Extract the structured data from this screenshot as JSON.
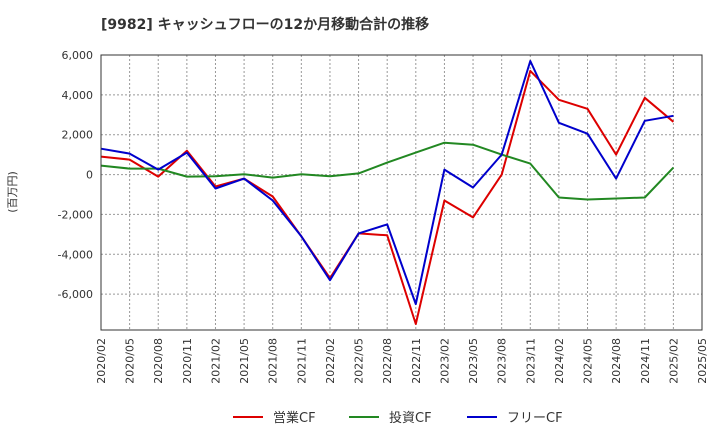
{
  "chart_data": {
    "type": "line",
    "title": "[9982]  キャッシュフローの12か月移動合計の推移",
    "ylabel": "(百万円)",
    "xlabel": "",
    "ylim": [
      -7800,
      6000
    ],
    "yticks": [
      6000,
      4000,
      2000,
      0,
      -2000,
      -4000,
      -6000
    ],
    "ytick_labels": [
      "6,000",
      "4,000",
      "2,000",
      "0",
      "-2,000",
      "-4,000",
      "-6,000"
    ],
    "x": [
      "2020/02",
      "2020/05",
      "2020/08",
      "2020/11",
      "2021/02",
      "2021/05",
      "2021/08",
      "2021/11",
      "2022/02",
      "2022/05",
      "2022/08",
      "2022/11",
      "2023/02",
      "2023/05",
      "2023/08",
      "2023/11",
      "2024/02",
      "2024/05",
      "2024/08",
      "2024/11",
      "2025/02"
    ],
    "xtick_labels": [
      "2020/02",
      "2020/05",
      "2020/08",
      "2020/11",
      "2021/02",
      "2021/05",
      "2021/08",
      "2021/11",
      "2022/02",
      "2022/05",
      "2022/08",
      "2022/11",
      "2023/02",
      "2023/05",
      "2023/08",
      "2023/11",
      "2024/02",
      "2024/05",
      "2024/08",
      "2024/11",
      "2025/02",
      "2025/05"
    ],
    "grid": true,
    "legend_position": "bottom",
    "series": [
      {
        "name": "営業CF",
        "color": "#dd0000",
        "values": [
          900,
          750,
          -100,
          1200,
          -600,
          -200,
          -1100,
          -3100,
          -5200,
          -2950,
          -3050,
          -7500,
          -1300,
          -2150,
          0,
          5200,
          3750,
          3300,
          1000,
          3850,
          2650
        ]
      },
      {
        "name": "投資CF",
        "color": "#228822",
        "values": [
          450,
          300,
          300,
          -100,
          -80,
          20,
          -150,
          20,
          -80,
          60,
          600,
          1100,
          1600,
          1500,
          1000,
          550,
          -1150,
          -1250,
          -1200,
          -1150,
          350
        ]
      },
      {
        "name": "フリーCF",
        "color": "#0000cc",
        "values": [
          1300,
          1050,
          250,
          1100,
          -700,
          -200,
          -1300,
          -3100,
          -5300,
          -2950,
          -2500,
          -6500,
          250,
          -650,
          1000,
          5700,
          2600,
          2050,
          -200,
          2700,
          2950
        ]
      }
    ]
  }
}
